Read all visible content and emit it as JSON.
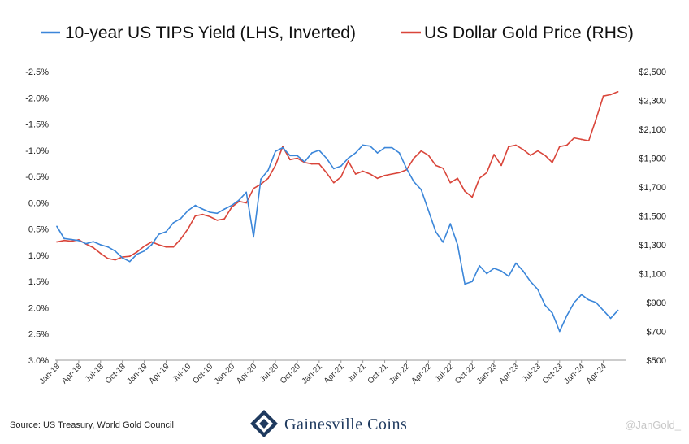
{
  "legend": {
    "tips_label": "10-year US TIPS Yield (LHS, Inverted)",
    "gold_label": "US Dollar Gold Price (RHS)"
  },
  "footer": {
    "source": "Source: US Treasury, World Gold Council",
    "brand_main": "Gainesville Coins",
    "watermark": "@JanGold_"
  },
  "colors": {
    "tips": "#3b86d9",
    "gold": "#d9453a",
    "brand": "#1f3a5f"
  },
  "chart_data": {
    "type": "line",
    "left_axis": {
      "inverted": true,
      "ylim": [
        -2.5,
        3.0
      ],
      "ticks": [
        -2.5,
        -2.0,
        -1.5,
        -1.0,
        -0.5,
        0.0,
        0.5,
        1.0,
        1.5,
        2.0,
        2.5,
        3.0
      ],
      "tick_labels": [
        "-2.5%",
        "-2.0%",
        "-1.5%",
        "-1.0%",
        "-0.5%",
        "0.0%",
        "0.5%",
        "1.0%",
        "1.5%",
        "2.0%",
        "2.5%",
        "3.0%"
      ]
    },
    "right_axis": {
      "ylim": [
        500,
        2500
      ],
      "ticks": [
        500,
        700,
        900,
        1100,
        1300,
        1500,
        1700,
        1900,
        2100,
        2300,
        2500
      ],
      "tick_labels": [
        "$500",
        "$700",
        "$900",
        "$1,100",
        "$1,300",
        "$1,500",
        "$1,700",
        "$1,900",
        "$2,100",
        "$2,300",
        "$2,500"
      ]
    },
    "x_ticks": [
      "Jan-18",
      "Apr-18",
      "Jul-18",
      "Oct-18",
      "Jan-19",
      "Apr-19",
      "Jul-19",
      "Oct-19",
      "Jan-20",
      "Apr-20",
      "Jul-20",
      "Oct-20",
      "Jan-21",
      "Apr-21",
      "Jul-21",
      "Oct-21",
      "Jan-22",
      "Apr-22",
      "Jul-22",
      "Oct-22",
      "Jan-23",
      "Apr-23",
      "Jul-23",
      "Oct-23",
      "Jan-24",
      "Apr-24"
    ],
    "series": [
      {
        "name": "10-year US TIPS Yield (LHS, Inverted)",
        "axis": "left",
        "x": [
          "Jan-18",
          "Feb-18",
          "Mar-18",
          "Apr-18",
          "May-18",
          "Jun-18",
          "Jul-18",
          "Aug-18",
          "Sep-18",
          "Oct-18",
          "Nov-18",
          "Dec-18",
          "Jan-19",
          "Feb-19",
          "Mar-19",
          "Apr-19",
          "May-19",
          "Jun-19",
          "Jul-19",
          "Aug-19",
          "Sep-19",
          "Oct-19",
          "Nov-19",
          "Dec-19",
          "Jan-20",
          "Feb-20",
          "Mar-20",
          "Apr-20",
          "May-20",
          "Jun-20",
          "Jul-20",
          "Aug-20",
          "Sep-20",
          "Oct-20",
          "Nov-20",
          "Dec-20",
          "Jan-21",
          "Feb-21",
          "Mar-21",
          "Apr-21",
          "May-21",
          "Jun-21",
          "Jul-21",
          "Aug-21",
          "Sep-21",
          "Oct-21",
          "Nov-21",
          "Dec-21",
          "Jan-22",
          "Feb-22",
          "Mar-22",
          "Apr-22",
          "May-22",
          "Jun-22",
          "Jul-22",
          "Aug-22",
          "Sep-22",
          "Oct-22",
          "Nov-22",
          "Dec-22",
          "Jan-23",
          "Feb-23",
          "Mar-23",
          "Apr-23",
          "May-23",
          "Jun-23",
          "Jul-23",
          "Aug-23",
          "Sep-23",
          "Oct-23",
          "Nov-23",
          "Dec-23",
          "Jan-24",
          "Feb-24",
          "Mar-24",
          "Apr-24",
          "May-24",
          "Jun-24"
        ],
        "values": [
          0.45,
          0.68,
          0.7,
          0.72,
          0.78,
          0.74,
          0.8,
          0.84,
          0.92,
          1.05,
          1.12,
          0.98,
          0.92,
          0.8,
          0.6,
          0.55,
          0.38,
          0.3,
          0.15,
          0.05,
          0.12,
          0.18,
          0.2,
          0.12,
          0.05,
          -0.05,
          -0.2,
          0.65,
          -0.45,
          -0.62,
          -0.98,
          -1.05,
          -0.9,
          -0.9,
          -0.78,
          -0.95,
          -1.0,
          -0.85,
          -0.65,
          -0.7,
          -0.85,
          -0.95,
          -1.1,
          -1.08,
          -0.95,
          -1.05,
          -1.05,
          -0.95,
          -0.65,
          -0.4,
          -0.25,
          0.15,
          0.55,
          0.75,
          0.4,
          0.8,
          1.55,
          1.5,
          1.2,
          1.35,
          1.25,
          1.3,
          1.4,
          1.15,
          1.3,
          1.5,
          1.65,
          1.95,
          2.1,
          2.45,
          2.15,
          1.9,
          1.75,
          1.85,
          1.9,
          2.05,
          2.2,
          2.05
        ]
      },
      {
        "name": "US Dollar Gold Price (RHS)",
        "axis": "right",
        "x": [
          "Jan-18",
          "Feb-18",
          "Mar-18",
          "Apr-18",
          "May-18",
          "Jun-18",
          "Jul-18",
          "Aug-18",
          "Sep-18",
          "Oct-18",
          "Nov-18",
          "Dec-18",
          "Jan-19",
          "Feb-19",
          "Mar-19",
          "Apr-19",
          "May-19",
          "Jun-19",
          "Jul-19",
          "Aug-19",
          "Sep-19",
          "Oct-19",
          "Nov-19",
          "Dec-19",
          "Jan-20",
          "Feb-20",
          "Mar-20",
          "Apr-20",
          "May-20",
          "Jun-20",
          "Jul-20",
          "Aug-20",
          "Sep-20",
          "Oct-20",
          "Nov-20",
          "Dec-20",
          "Jan-21",
          "Feb-21",
          "Mar-21",
          "Apr-21",
          "May-21",
          "Jun-21",
          "Jul-21",
          "Aug-21",
          "Sep-21",
          "Oct-21",
          "Nov-21",
          "Dec-21",
          "Jan-22",
          "Feb-22",
          "Mar-22",
          "Apr-22",
          "May-22",
          "Jun-22",
          "Jul-22",
          "Aug-22",
          "Sep-22",
          "Oct-22",
          "Nov-22",
          "Dec-22",
          "Jan-23",
          "Feb-23",
          "Mar-23",
          "Apr-23",
          "May-23",
          "Jun-23",
          "Jul-23",
          "Aug-23",
          "Sep-23",
          "Oct-23",
          "Nov-23",
          "Dec-23",
          "Jan-24",
          "Feb-24",
          "Mar-24",
          "Apr-24",
          "May-24",
          "Jun-24"
        ],
        "values": [
          1320,
          1330,
          1325,
          1335,
          1305,
          1280,
          1240,
          1205,
          1195,
          1215,
          1220,
          1250,
          1290,
          1320,
          1300,
          1285,
          1285,
          1340,
          1410,
          1500,
          1510,
          1495,
          1470,
          1480,
          1560,
          1600,
          1590,
          1690,
          1720,
          1760,
          1850,
          1980,
          1890,
          1900,
          1870,
          1860,
          1860,
          1800,
          1730,
          1770,
          1880,
          1790,
          1810,
          1790,
          1760,
          1780,
          1790,
          1800,
          1820,
          1900,
          1950,
          1920,
          1850,
          1830,
          1730,
          1760,
          1670,
          1630,
          1760,
          1800,
          1925,
          1850,
          1980,
          1990,
          1960,
          1920,
          1950,
          1920,
          1870,
          1980,
          1990,
          2040,
          2030,
          2020,
          2170,
          2330,
          2340,
          2360
        ]
      }
    ]
  }
}
